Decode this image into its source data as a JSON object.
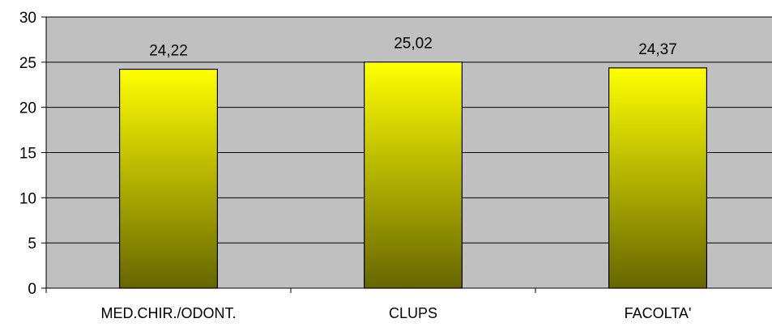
{
  "chart_data": {
    "type": "bar",
    "categories": [
      "MED.CHIR./ODONT.",
      "CLUPS",
      "FACOLTA'"
    ],
    "values": [
      24.22,
      25.02,
      24.37
    ],
    "data_labels": [
      "24,22",
      "25,02",
      "24,37"
    ],
    "ylim": [
      0,
      30
    ],
    "yticks": [
      0,
      5,
      10,
      15,
      20,
      25,
      30
    ],
    "grid": true,
    "legend": "none",
    "colors": {
      "plot_background": "#c0c0c0",
      "gridline": "#000000",
      "bar_top": "#ffff00",
      "bar_bottom": "#666600",
      "bar_border": "#000000"
    }
  }
}
